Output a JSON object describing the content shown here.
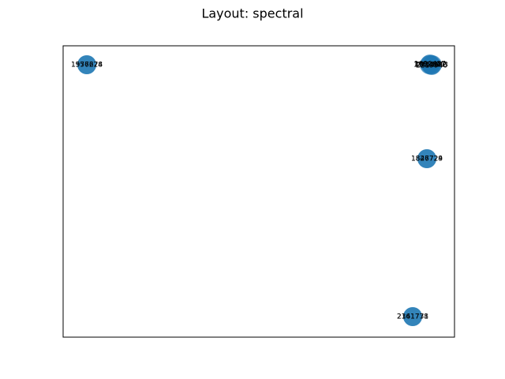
{
  "title": "Layout: spectral",
  "nodes": [
    {
      "label": "1957628"
    },
    {
      "label": "1576274"
    },
    {
      "label": "1847729"
    },
    {
      "label": "1826724"
    },
    {
      "label": "2161778"
    },
    {
      "label": "2341731"
    },
    {
      "label": "1934582"
    },
    {
      "label": "1762591"
    },
    {
      "label": "2058813"
    },
    {
      "label": "1690437"
    },
    {
      "label": "2219946"
    }
  ]
}
